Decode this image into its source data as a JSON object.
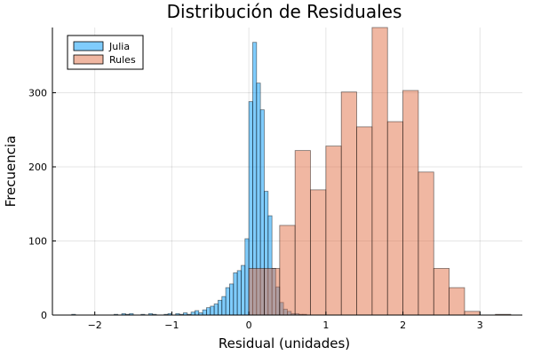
{
  "chart_data": {
    "type": "histogram",
    "title": "Distribución de Residuales",
    "xlabel": "Residual (unidades)",
    "ylabel": "Frecuencia",
    "xlim": [
      -2.55,
      3.55
    ],
    "ylim": [
      0,
      388
    ],
    "x_ticks": [
      -2,
      -1,
      0,
      1,
      2,
      3
    ],
    "y_ticks": [
      0,
      100,
      200,
      300
    ],
    "grid": true,
    "legend_position": "top-left",
    "series": [
      {
        "name": "Julia",
        "color": "#009af9",
        "bins": [
          {
            "x0": -2.3,
            "x1": -2.25,
            "count": 1
          },
          {
            "x0": -1.75,
            "x1": -1.7,
            "count": 1
          },
          {
            "x0": -1.65,
            "x1": -1.6,
            "count": 2
          },
          {
            "x0": -1.6,
            "x1": -1.55,
            "count": 1
          },
          {
            "x0": -1.55,
            "x1": -1.5,
            "count": 2
          },
          {
            "x0": -1.4,
            "x1": -1.35,
            "count": 1
          },
          {
            "x0": -1.3,
            "x1": -1.25,
            "count": 2
          },
          {
            "x0": -1.25,
            "x1": -1.2,
            "count": 1
          },
          {
            "x0": -1.1,
            "x1": -1.05,
            "count": 1
          },
          {
            "x0": -1.05,
            "x1": -1.0,
            "count": 2
          },
          {
            "x0": -0.95,
            "x1": -0.9,
            "count": 2
          },
          {
            "x0": -0.9,
            "x1": -0.85,
            "count": 1
          },
          {
            "x0": -0.85,
            "x1": -0.8,
            "count": 3
          },
          {
            "x0": -0.8,
            "x1": -0.75,
            "count": 1
          },
          {
            "x0": -0.75,
            "x1": -0.7,
            "count": 4
          },
          {
            "x0": -0.7,
            "x1": -0.65,
            "count": 6
          },
          {
            "x0": -0.65,
            "x1": -0.6,
            "count": 3
          },
          {
            "x0": -0.6,
            "x1": -0.55,
            "count": 7
          },
          {
            "x0": -0.55,
            "x1": -0.5,
            "count": 10
          },
          {
            "x0": -0.5,
            "x1": -0.45,
            "count": 12
          },
          {
            "x0": -0.45,
            "x1": -0.4,
            "count": 15
          },
          {
            "x0": -0.4,
            "x1": -0.35,
            "count": 20
          },
          {
            "x0": -0.35,
            "x1": -0.3,
            "count": 25
          },
          {
            "x0": -0.3,
            "x1": -0.25,
            "count": 37
          },
          {
            "x0": -0.25,
            "x1": -0.2,
            "count": 42
          },
          {
            "x0": -0.2,
            "x1": -0.15,
            "count": 57
          },
          {
            "x0": -0.15,
            "x1": -0.1,
            "count": 60
          },
          {
            "x0": -0.1,
            "x1": -0.05,
            "count": 67
          },
          {
            "x0": -0.05,
            "x1": 0.0,
            "count": 103
          },
          {
            "x0": 0.0,
            "x1": 0.05,
            "count": 288
          },
          {
            "x0": 0.05,
            "x1": 0.1,
            "count": 368
          },
          {
            "x0": 0.1,
            "x1": 0.15,
            "count": 313
          },
          {
            "x0": 0.15,
            "x1": 0.2,
            "count": 277
          },
          {
            "x0": 0.2,
            "x1": 0.25,
            "count": 167
          },
          {
            "x0": 0.25,
            "x1": 0.3,
            "count": 134
          },
          {
            "x0": 0.3,
            "x1": 0.35,
            "count": 63
          },
          {
            "x0": 0.35,
            "x1": 0.4,
            "count": 38
          },
          {
            "x0": 0.4,
            "x1": 0.45,
            "count": 17
          },
          {
            "x0": 0.45,
            "x1": 0.5,
            "count": 8
          },
          {
            "x0": 0.5,
            "x1": 0.55,
            "count": 5
          },
          {
            "x0": 0.55,
            "x1": 0.6,
            "count": 2
          },
          {
            "x0": 0.6,
            "x1": 0.65,
            "count": 2
          },
          {
            "x0": 0.65,
            "x1": 0.7,
            "count": 1
          },
          {
            "x0": 0.7,
            "x1": 0.75,
            "count": 1
          }
        ]
      },
      {
        "name": "Rules",
        "color": "#e26f46",
        "bins": [
          {
            "x0": 0.0,
            "x1": 0.2,
            "count": 63
          },
          {
            "x0": 0.2,
            "x1": 0.4,
            "count": 63
          },
          {
            "x0": 0.4,
            "x1": 0.6,
            "count": 121
          },
          {
            "x0": 0.6,
            "x1": 0.8,
            "count": 222
          },
          {
            "x0": 0.8,
            "x1": 1.0,
            "count": 169
          },
          {
            "x0": 1.0,
            "x1": 1.2,
            "count": 228
          },
          {
            "x0": 1.2,
            "x1": 1.4,
            "count": 301
          },
          {
            "x0": 1.4,
            "x1": 1.6,
            "count": 254
          },
          {
            "x0": 1.6,
            "x1": 1.8,
            "count": 388
          },
          {
            "x0": 1.8,
            "x1": 2.0,
            "count": 261
          },
          {
            "x0": 2.0,
            "x1": 2.2,
            "count": 303
          },
          {
            "x0": 2.2,
            "x1": 2.4,
            "count": 193
          },
          {
            "x0": 2.4,
            "x1": 2.6,
            "count": 63
          },
          {
            "x0": 2.6,
            "x1": 2.8,
            "count": 37
          },
          {
            "x0": 2.8,
            "x1": 3.0,
            "count": 5
          },
          {
            "x0": 3.2,
            "x1": 3.4,
            "count": 1
          }
        ]
      }
    ]
  }
}
